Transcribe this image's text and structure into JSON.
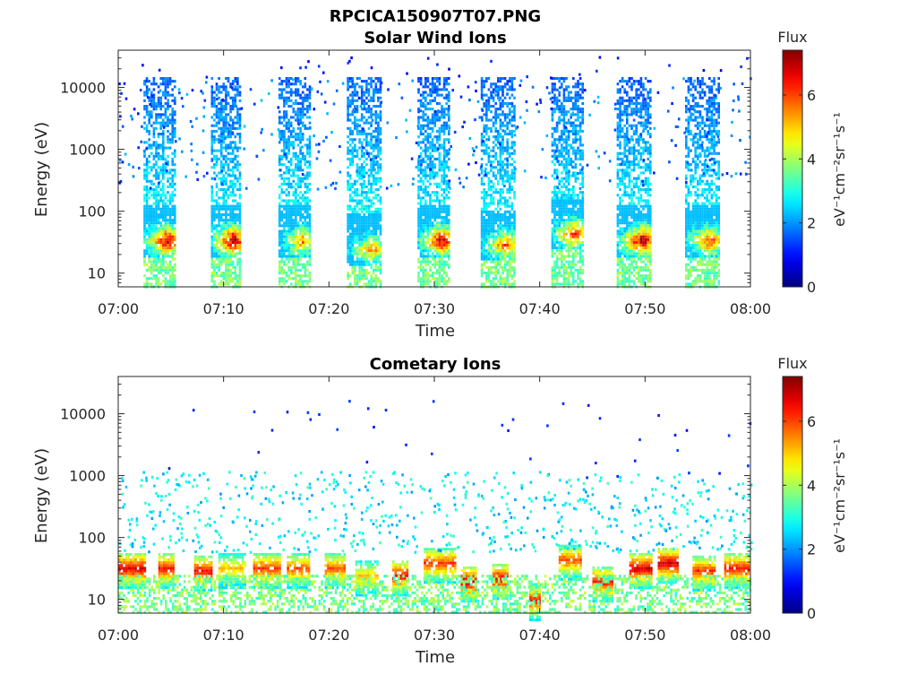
{
  "figure": {
    "title": "RPCICA150907T07.PNG"
  },
  "chart_data": [
    {
      "type": "heatmap",
      "title": "Solar Wind Ions",
      "xlabel": "Time",
      "ylabel": "Energy (eV)",
      "yscale": "log",
      "xlim": [
        "07:00",
        "08:00"
      ],
      "ylim": [
        6,
        40000
      ],
      "xticks": [
        "07:00",
        "07:10",
        "07:20",
        "07:30",
        "07:40",
        "07:50",
        "08:00"
      ],
      "yticks": [
        "10",
        "100",
        "1000",
        "10000"
      ],
      "colorbar": {
        "label": "Flux",
        "units_label": "eV⁻¹cm⁻²sr⁻¹s⁻¹",
        "range": [
          0,
          7.4
        ],
        "ticks": [
          "0",
          "2",
          "4",
          "6"
        ],
        "colormap": "jet"
      },
      "bursts": [
        {
          "start": "07:02.4",
          "end": "07:05.4",
          "peak_energy_ev": 35,
          "peak_flux": 6.5
        },
        {
          "start": "07:08.8",
          "end": "07:11.6",
          "peak_energy_ev": 35,
          "peak_flux": 6.8
        },
        {
          "start": "07:15.2",
          "end": "07:18.2",
          "peak_energy_ev": 35,
          "peak_flux": 5.0
        },
        {
          "start": "07:21.7",
          "end": "07:24.9",
          "peak_energy_ev": 25,
          "peak_flux": 4.8
        },
        {
          "start": "07:28.4",
          "end": "07:31.4",
          "peak_energy_ev": 35,
          "peak_flux": 6.4
        },
        {
          "start": "07:34.4",
          "end": "07:37.6",
          "peak_energy_ev": 30,
          "peak_flux": 5.3
        },
        {
          "start": "07:41.1",
          "end": "07:44.1",
          "peak_energy_ev": 45,
          "peak_flux": 5.8
        },
        {
          "start": "07:47.3",
          "end": "07:50.6",
          "peak_energy_ev": 35,
          "peak_flux": 6.6
        },
        {
          "start": "07:53.8",
          "end": "07:56.9",
          "peak_energy_ev": 35,
          "peak_flux": 5.6
        }
      ]
    },
    {
      "type": "heatmap",
      "title": "Cometary Ions",
      "xlabel": "Time",
      "ylabel": "Energy (eV)",
      "yscale": "log",
      "xlim": [
        "07:00",
        "08:00"
      ],
      "ylim": [
        6,
        40000
      ],
      "xticks": [
        "07:00",
        "07:10",
        "07:20",
        "07:30",
        "07:40",
        "07:50",
        "08:00"
      ],
      "yticks": [
        "10",
        "100",
        "1000",
        "10000"
      ],
      "colorbar": {
        "label": "Flux",
        "units_label": "eV⁻¹cm⁻²sr⁻¹s⁻¹",
        "range": [
          0,
          7.4
        ],
        "ticks": [
          "0",
          "2",
          "4",
          "6"
        ],
        "colormap": "jet"
      },
      "bursts": [
        {
          "start": "07:00.0",
          "end": "07:02.5",
          "peak_energy_ev": 33,
          "peak_flux": 6.8
        },
        {
          "start": "07:03.8",
          "end": "07:05.2",
          "peak_energy_ev": 33,
          "peak_flux": 6.5
        },
        {
          "start": "07:07.2",
          "end": "07:08.8",
          "peak_energy_ev": 30,
          "peak_flux": 6.6
        },
        {
          "start": "07:09.5",
          "end": "07:12.0",
          "peak_energy_ev": 33,
          "peak_flux": 5.2
        },
        {
          "start": "07:12.8",
          "end": "07:15.3",
          "peak_energy_ev": 33,
          "peak_flux": 6.2
        },
        {
          "start": "07:16.0",
          "end": "07:18.0",
          "peak_energy_ev": 33,
          "peak_flux": 6.0
        },
        {
          "start": "07:19.6",
          "end": "07:21.5",
          "peak_energy_ev": 33,
          "peak_flux": 6.0
        },
        {
          "start": "07:22.5",
          "end": "07:24.5",
          "peak_energy_ev": 25,
          "peak_flux": 5.2
        },
        {
          "start": "07:26.0",
          "end": "07:27.5",
          "peak_energy_ev": 25,
          "peak_flux": 6.6
        },
        {
          "start": "07:29.0",
          "end": "07:32.0",
          "peak_energy_ev": 40,
          "peak_flux": 6.2
        },
        {
          "start": "07:32.5",
          "end": "07:34.0",
          "peak_energy_ev": 20,
          "peak_flux": 7.0
        },
        {
          "start": "07:35.5",
          "end": "07:37.0",
          "peak_energy_ev": 22,
          "peak_flux": 6.8
        },
        {
          "start": "07:39.0",
          "end": "07:40.0",
          "peak_energy_ev": 10,
          "peak_flux": 6.6
        },
        {
          "start": "07:41.8",
          "end": "07:44.0",
          "peak_energy_ev": 45,
          "peak_flux": 6.0
        },
        {
          "start": "07:45.0",
          "end": "07:46.8",
          "peak_energy_ev": 20,
          "peak_flux": 6.4
        },
        {
          "start": "07:48.5",
          "end": "07:50.5",
          "peak_energy_ev": 33,
          "peak_flux": 6.9
        },
        {
          "start": "07:51.2",
          "end": "07:53.0",
          "peak_energy_ev": 40,
          "peak_flux": 7.0
        },
        {
          "start": "07:54.5",
          "end": "07:56.5",
          "peak_energy_ev": 30,
          "peak_flux": 6.2
        },
        {
          "start": "07:57.5",
          "end": "07:59.8",
          "peak_energy_ev": 33,
          "peak_flux": 6.5
        }
      ]
    }
  ]
}
